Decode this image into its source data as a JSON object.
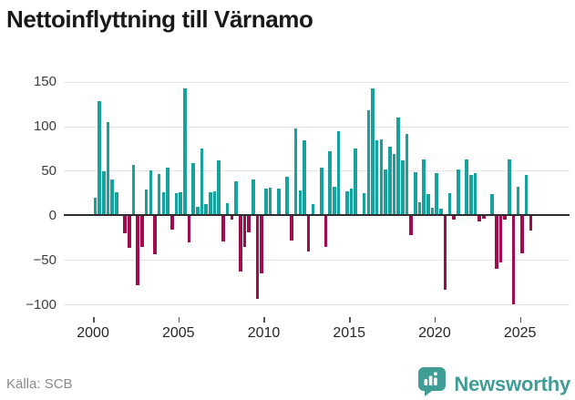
{
  "title": "Nettoinflyttning till Värnamo",
  "footer": {
    "source": "Källa: SCB",
    "brand": "Newsworthy"
  },
  "colors": {
    "positive_bar": "#17a29e",
    "negative_bar": "#a00d4e",
    "brand_teal": "#3f9d96",
    "gridline": "#e4e4e4",
    "zero_line": "#2e2e2e"
  },
  "chart_data": {
    "type": "bar",
    "title": "Nettoinflyttning till Värnamo",
    "xlabel": "",
    "ylabel": "",
    "ylim": [
      -110,
      160
    ],
    "grid": "horizontal",
    "legend": "none",
    "y_ticks": [
      150,
      100,
      50,
      0,
      -50,
      -100
    ],
    "x_tick_labels": [
      "2000",
      "2005",
      "2010",
      "2015",
      "2020",
      "2025"
    ],
    "positive_color": "#17a29e",
    "negative_color": "#a00d4e",
    "categories": [
      "2000Q1",
      "2000Q2",
      "2000Q3",
      "2000Q4",
      "2001Q1",
      "2001Q2",
      "2001Q3",
      "2001Q4",
      "2002Q1",
      "2002Q2",
      "2002Q3",
      "2002Q4",
      "2003Q1",
      "2003Q2",
      "2003Q3",
      "2003Q4",
      "2004Q1",
      "2004Q2",
      "2004Q3",
      "2004Q4",
      "2005Q1",
      "2005Q2",
      "2005Q3",
      "2005Q4",
      "2006Q1",
      "2006Q2",
      "2006Q3",
      "2006Q4",
      "2007Q1",
      "2007Q2",
      "2007Q3",
      "2007Q4",
      "2008Q1",
      "2008Q2",
      "2008Q3",
      "2008Q4",
      "2009Q1",
      "2009Q2",
      "2009Q3",
      "2009Q4",
      "2010Q1",
      "2010Q2",
      "2010Q3",
      "2010Q4",
      "2011Q1",
      "2011Q2",
      "2011Q3",
      "2011Q4",
      "2012Q1",
      "2012Q2",
      "2012Q3",
      "2012Q4",
      "2013Q1",
      "2013Q2",
      "2013Q3",
      "2013Q4",
      "2014Q1",
      "2014Q2",
      "2014Q3",
      "2014Q4",
      "2015Q1",
      "2015Q2",
      "2015Q3",
      "2015Q4",
      "2016Q1",
      "2016Q2",
      "2016Q3",
      "2016Q4",
      "2017Q1",
      "2017Q2",
      "2017Q3",
      "2017Q4",
      "2018Q1",
      "2018Q2",
      "2018Q3",
      "2018Q4",
      "2019Q1",
      "2019Q2",
      "2019Q3",
      "2019Q4",
      "2020Q1",
      "2020Q2",
      "2020Q3",
      "2020Q4",
      "2021Q1",
      "2021Q2",
      "2021Q3",
      "2021Q4",
      "2022Q1",
      "2022Q2",
      "2022Q3",
      "2022Q4",
      "2023Q1",
      "2023Q2",
      "2023Q3",
      "2023Q4",
      "2024Q1",
      "2024Q2",
      "2024Q3",
      "2024Q4",
      "2025Q1",
      "2025Q2",
      "2025Q3"
    ],
    "values": [
      20,
      128,
      49,
      105,
      40,
      26,
      0,
      -20,
      -37,
      57,
      -78,
      -36,
      29,
      50,
      -44,
      46,
      26,
      53,
      -16,
      25,
      26,
      142,
      -30,
      59,
      10,
      75,
      13,
      26,
      27,
      62,
      -29,
      14,
      -5,
      38,
      -63,
      -35,
      -19,
      40,
      -94,
      -65,
      30,
      31,
      0,
      30,
      0,
      43,
      -28,
      98,
      28,
      84,
      -41,
      13,
      0,
      53,
      -35,
      72,
      32,
      94,
      0,
      27,
      30,
      75,
      0,
      25,
      118,
      142,
      84,
      85,
      51,
      77,
      69,
      110,
      62,
      91,
      -22,
      48,
      15,
      63,
      24,
      8,
      47,
      7,
      -84,
      25,
      -5,
      51,
      0,
      63,
      45,
      47,
      -7,
      -4,
      0,
      24,
      -60,
      -53,
      -5,
      63,
      -100,
      32,
      -43,
      45,
      -17
    ]
  }
}
